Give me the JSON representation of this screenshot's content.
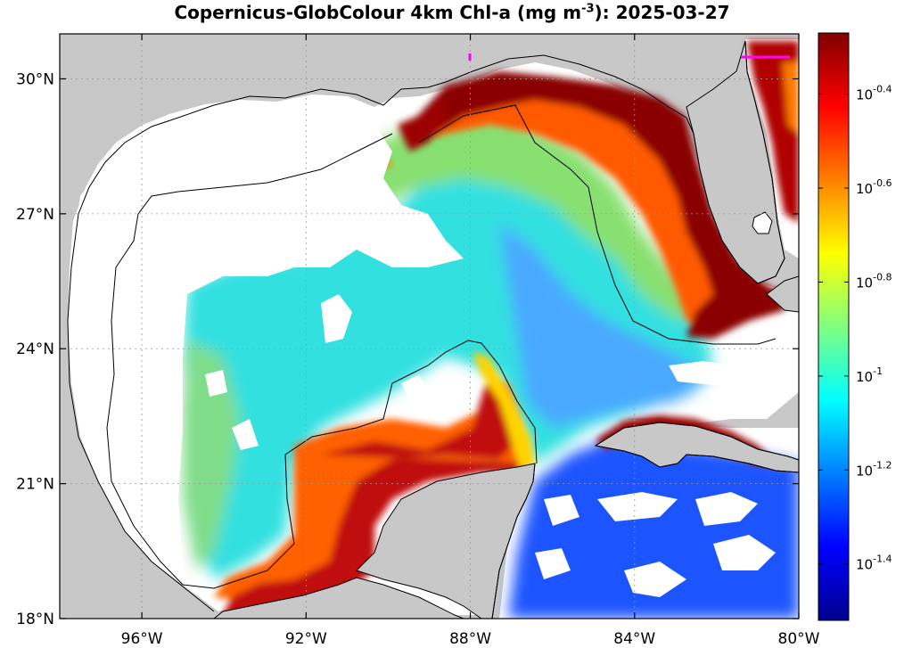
{
  "title": {
    "main": "Copernicus-GlobColour 4km Chl-a (mg m",
    "exponent": "-3",
    "tail": "): 2025-03-27"
  },
  "map": {
    "lon_range": [
      -98,
      -80
    ],
    "lat_range": [
      18,
      31
    ],
    "x_ticks": [
      {
        "lon": -96,
        "label": "96°W"
      },
      {
        "lon": -92,
        "label": "92°W"
      },
      {
        "lon": -88,
        "label": "88°W"
      },
      {
        "lon": -84,
        "label": "84°W"
      },
      {
        "lon": -80,
        "label": "80°W"
      }
    ],
    "y_ticks": [
      {
        "lat": 30,
        "label": "30°N"
      },
      {
        "lat": 27,
        "label": "27°N"
      },
      {
        "lat": 24,
        "label": "24°N"
      },
      {
        "lat": 21,
        "label": "21°N"
      },
      {
        "lat": 18,
        "label": "18°N"
      }
    ],
    "colors": {
      "land": "#c8c8c8",
      "no_data": "#ffffff",
      "coastline": "#000000",
      "grid": "#9a9a9a",
      "marker": "#ff00ff"
    }
  },
  "colorbar": {
    "scale": "log10",
    "range_log": [
      -1.52,
      -0.27
    ],
    "ticks": [
      {
        "value": -0.4,
        "base": "10",
        "exp": "-0.4"
      },
      {
        "value": -0.6,
        "base": "10",
        "exp": "-0.6"
      },
      {
        "value": -0.8,
        "base": "10",
        "exp": "-0.8"
      },
      {
        "value": -1.0,
        "base": "10",
        "exp": "-1"
      },
      {
        "value": -1.2,
        "base": "10",
        "exp": "-1.2"
      },
      {
        "value": -1.4,
        "base": "10",
        "exp": "-1.4"
      }
    ],
    "colormap": "jet"
  }
}
